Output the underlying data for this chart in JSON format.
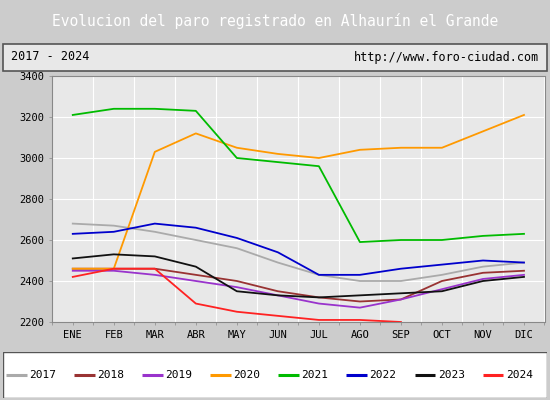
{
  "title": "Evolucion del paro registrado en Alhaurín el Grande",
  "title_bg": "#4a7fc1",
  "subtitle_left": "2017 - 2024",
  "subtitle_right": "http://www.foro-ciudad.com",
  "xlabel_months": [
    "ENE",
    "FEB",
    "MAR",
    "ABR",
    "MAY",
    "JUN",
    "JUL",
    "AGO",
    "SEP",
    "OCT",
    "NOV",
    "DIC"
  ],
  "ylim": [
    2200,
    3400
  ],
  "yticks": [
    2200,
    2400,
    2600,
    2800,
    3000,
    3200,
    3400
  ],
  "series": {
    "2017": {
      "color": "#aaaaaa",
      "data": [
        2680,
        2670,
        2640,
        2600,
        2560,
        2490,
        2430,
        2400,
        2400,
        2430,
        2470,
        2490
      ]
    },
    "2018": {
      "color": "#993333",
      "data": [
        2460,
        2460,
        2460,
        2430,
        2400,
        2350,
        2320,
        2300,
        2310,
        2400,
        2440,
        2450
      ]
    },
    "2019": {
      "color": "#9933cc",
      "data": [
        2450,
        2450,
        2430,
        2400,
        2370,
        2330,
        2290,
        2270,
        2310,
        2360,
        2410,
        2430
      ]
    },
    "2020": {
      "color": "#ff9900",
      "data": [
        2460,
        2460,
        3030,
        3120,
        3050,
        3020,
        3000,
        3040,
        3050,
        3050,
        3130,
        3210
      ]
    },
    "2021": {
      "color": "#00bb00",
      "data": [
        3210,
        3240,
        3240,
        3230,
        3000,
        2980,
        2960,
        2590,
        2600,
        2600,
        2620,
        2630
      ]
    },
    "2022": {
      "color": "#0000cc",
      "data": [
        2630,
        2640,
        2680,
        2660,
        2610,
        2540,
        2430,
        2430,
        2460,
        2480,
        2500,
        2490
      ]
    },
    "2023": {
      "color": "#111111",
      "data": [
        2510,
        2530,
        2520,
        2470,
        2350,
        2330,
        2320,
        2330,
        2340,
        2350,
        2400,
        2420
      ]
    },
    "2024": {
      "color": "#ff2222",
      "data": [
        2420,
        2460,
        2460,
        2290,
        2250,
        2230,
        2210,
        2210,
        2200,
        null,
        null,
        null
      ]
    }
  },
  "plot_bg": "#e8e8e8",
  "fig_bg": "#cccccc",
  "grid_color": "#ffffff"
}
